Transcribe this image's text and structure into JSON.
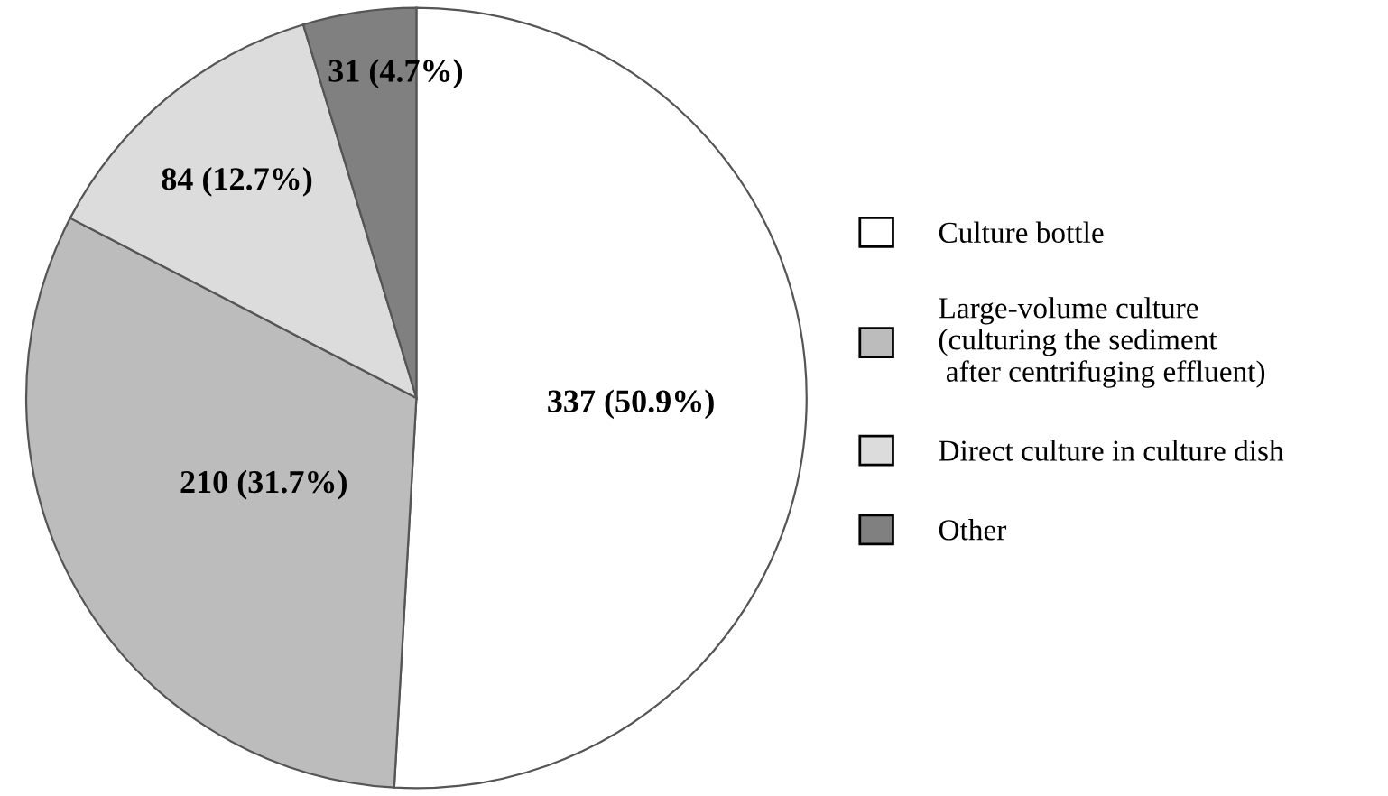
{
  "chart_data": {
    "type": "pie",
    "categories": [
      "Culture bottle",
      "Large-volume culture\n(culturing the sediment\n after centrifuging effluent)",
      "Direct culture in culture dish",
      "Other"
    ],
    "values": [
      337,
      210,
      84,
      31
    ],
    "value_labels": [
      "337 (50.9%)",
      "210 (31.7%)",
      "84 (12.7%)",
      "31 (4.7%)"
    ],
    "colors": [
      "#ffffff",
      "#bcbcbc",
      "#dcdcdc",
      "#808080"
    ],
    "legend": "right"
  }
}
